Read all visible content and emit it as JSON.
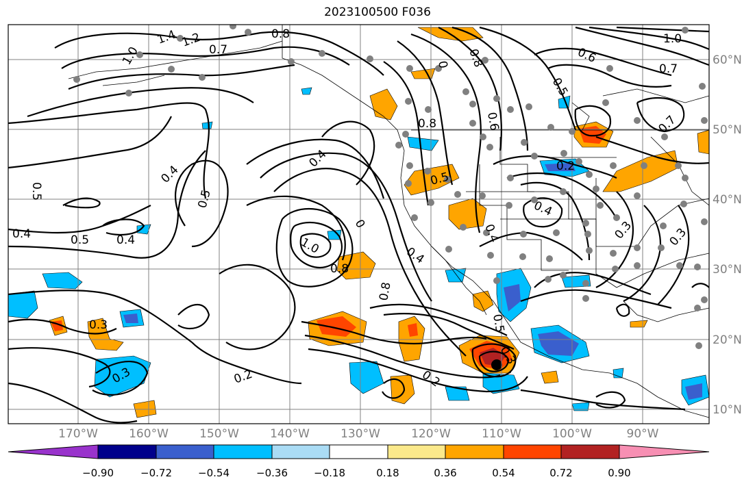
{
  "title": "2023100500 F036",
  "lon_labels": [
    "170°W",
    "160°W",
    "150°W",
    "140°W",
    "130°W",
    "120°W",
    "110°W",
    "100°W",
    "90°W"
  ],
  "lat_labels": [
    "60°N",
    "50°N",
    "40°N",
    "30°N",
    "20°N",
    "10°N"
  ],
  "contour_labels": [
    "1.4",
    "1.2",
    "0.7",
    "1.0",
    "0.8",
    "0.4",
    "0.5",
    "0.4",
    "0.5",
    "0.4",
    "0.5",
    "0.4",
    "0.3",
    "0.3",
    "0.2",
    "1.0",
    "0.8",
    "0",
    "0.8",
    "0.4",
    "0.2",
    "0.3",
    "0.5",
    "0.8",
    "0",
    "0.8",
    "0.6",
    "0.5",
    "0.2",
    "0.4",
    "0.6",
    "0.7",
    "1.0",
    "0.7",
    "0.5",
    "0.3",
    "0.3",
    "0.4"
  ],
  "colorbar": {
    "ticks": [
      "−0.90",
      "−0.72",
      "−0.54",
      "−0.36",
      "−0.18",
      "0.18",
      "0.36",
      "0.54",
      "0.72",
      "0.90"
    ],
    "colors": [
      "#9933cc",
      "#00008b",
      "#3a5fcd",
      "#00bfff",
      "#aadcf5",
      "#ffffff",
      "#fbe98b",
      "#ffa500",
      "#ff4500",
      "#b22222",
      "#f78fb3"
    ]
  },
  "palette": {
    "neg_light": "#00bfff",
    "neg_mid": "#3a5fcd",
    "pos_light": "#ffa500",
    "pos_mid": "#ff4500",
    "pos_dark": "#b22222",
    "station": "#808080"
  }
}
